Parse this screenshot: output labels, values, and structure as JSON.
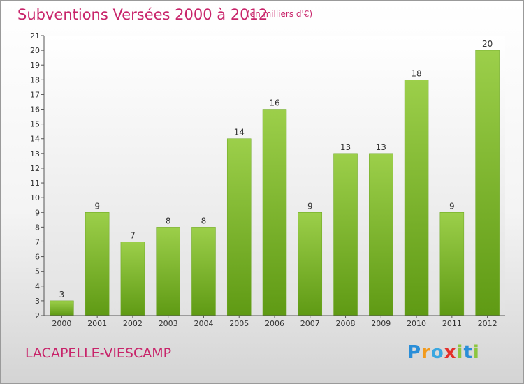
{
  "header": {
    "title": "Subventions Versées 2000 à 2012",
    "subtitle": "(en milliers d'€)"
  },
  "footer": {
    "commune": "LACAPELLE-VIESCAMP",
    "logo": [
      "P",
      "r",
      "o",
      "x",
      "i",
      "t",
      "i"
    ]
  },
  "colors": {
    "accent": "#c8246a",
    "bar_top": "#9ccf4a",
    "bar_bottom": "#5f9a14"
  },
  "chart_data": {
    "type": "bar",
    "title": "Subventions Versées 2000 à 2012",
    "subtitle": "(en milliers d'€)",
    "categories": [
      "2000",
      "2001",
      "2002",
      "2003",
      "2004",
      "2005",
      "2006",
      "2007",
      "2008",
      "2009",
      "2010",
      "2011",
      "2012"
    ],
    "values": [
      3,
      9,
      7,
      8,
      8,
      14,
      16,
      9,
      13,
      13,
      18,
      9,
      20
    ],
    "xlabel": "",
    "ylabel": "",
    "ylim": [
      2,
      21
    ],
    "yticks": [
      2,
      3,
      4,
      5,
      6,
      7,
      8,
      9,
      10,
      11,
      12,
      13,
      14,
      15,
      16,
      17,
      18,
      19,
      20,
      21
    ],
    "grid": false,
    "legend": "none",
    "data_labels": true
  }
}
